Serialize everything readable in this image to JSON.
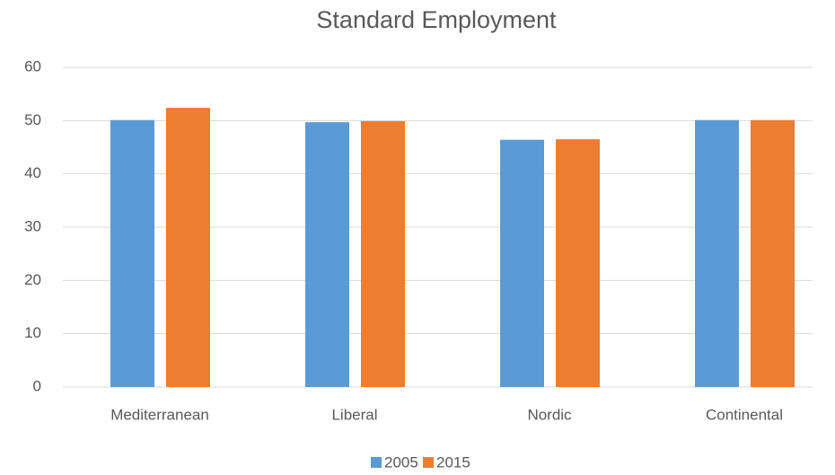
{
  "chart_data": {
    "type": "bar",
    "title": "Standard Employment",
    "categories": [
      "Mediterranean",
      "Liberal",
      "Nordic",
      "Continental"
    ],
    "series": [
      {
        "name": "2005",
        "color": "#5b9bd5",
        "values": [
          50.1,
          49.7,
          46.4,
          50.1
        ]
      },
      {
        "name": "2015",
        "color": "#ed7d31",
        "values": [
          52.4,
          49.9,
          46.5,
          50.1
        ]
      }
    ],
    "ylim": [
      0,
      60
    ],
    "yticks": [
      0,
      10,
      20,
      30,
      40,
      50,
      60
    ],
    "grid": true,
    "legend": "bottom"
  }
}
